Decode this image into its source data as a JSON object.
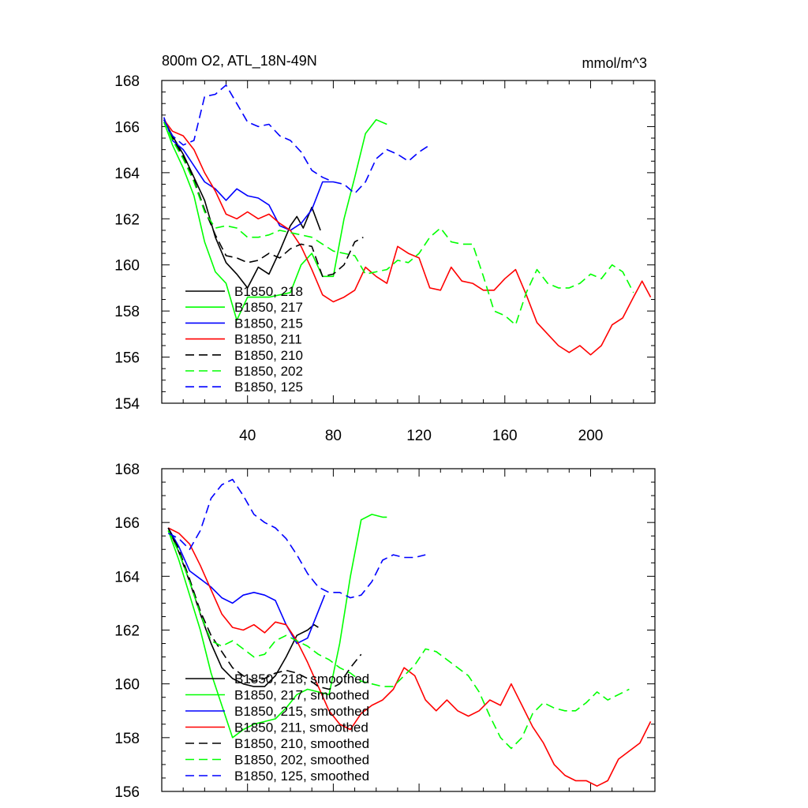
{
  "title": "800m O2, ATL_18N-49N",
  "units": "mmol/m^3",
  "chart_data": [
    {
      "type": "line",
      "title": "800m O2, ATL_18N-49N",
      "units": "mmol/m^3",
      "xlim": [
        0,
        230
      ],
      "ylim": [
        154,
        168
      ],
      "xticks": [
        40,
        80,
        120,
        160,
        200
      ],
      "xtick_labels": [
        "40",
        "80",
        "120",
        "160",
        "200"
      ],
      "yticks": [
        154,
        156,
        158,
        160,
        162,
        164,
        166,
        168
      ],
      "ytick_labels": [
        "154",
        "156",
        "158",
        "160",
        "162",
        "164",
        "166",
        "168"
      ],
      "legend_position": "bottom-left",
      "series": [
        {
          "name": "B1850, 218",
          "label": "B1850, 218",
          "color": "#000000",
          "dash": "solid",
          "x": [
            1,
            5,
            10,
            15,
            20,
            25,
            30,
            35,
            40,
            45,
            50,
            55,
            60,
            63,
            66,
            70,
            74
          ],
          "y": [
            166.3,
            165.6,
            164.8,
            163.8,
            162.8,
            161.2,
            160.1,
            159.6,
            159.0,
            159.9,
            159.6,
            160.6,
            161.7,
            162.1,
            161.6,
            162.5,
            161.5
          ]
        },
        {
          "name": "B1850, 217",
          "label": "B1850, 217",
          "color": "#00ff00",
          "dash": "solid",
          "x": [
            1,
            5,
            10,
            15,
            20,
            25,
            30,
            35,
            40,
            45,
            50,
            55,
            60,
            65,
            70,
            75,
            80,
            85,
            90,
            95,
            100,
            105
          ],
          "y": [
            166.2,
            165.2,
            164.2,
            163.0,
            161.0,
            159.7,
            159.2,
            157.6,
            158.6,
            158.6,
            158.6,
            158.7,
            158.8,
            160.0,
            160.5,
            159.5,
            159.5,
            162.0,
            163.8,
            165.7,
            166.3,
            166.1
          ]
        },
        {
          "name": "B1850, 215",
          "label": "B1850, 215",
          "color": "#0000ff",
          "dash": "solid",
          "x": [
            1,
            5,
            10,
            15,
            20,
            25,
            30,
            35,
            40,
            45,
            50,
            55,
            60,
            65,
            70,
            75,
            80
          ],
          "y": [
            166.4,
            165.4,
            165.0,
            164.3,
            163.6,
            163.3,
            162.8,
            163.3,
            163.0,
            162.9,
            162.6,
            161.7,
            161.5,
            161.8,
            162.4,
            163.6,
            163.6
          ]
        },
        {
          "name": "B1850, 211",
          "label": "B1850, 211",
          "color": "#ff0000",
          "dash": "solid",
          "x": [
            1,
            5,
            10,
            15,
            20,
            25,
            30,
            35,
            40,
            45,
            50,
            55,
            60,
            65,
            70,
            75,
            80,
            85,
            90,
            95,
            100,
            105,
            110,
            115,
            120,
            125,
            130,
            135,
            140,
            145,
            150,
            155,
            160,
            165,
            170,
            175,
            180,
            185,
            190,
            195,
            200,
            205,
            210,
            215,
            220,
            224,
            228
          ],
          "y": [
            166.3,
            165.8,
            165.6,
            165.0,
            164.0,
            163.2,
            162.2,
            162.0,
            162.3,
            162.0,
            162.2,
            161.8,
            161.5,
            160.8,
            159.8,
            158.7,
            158.4,
            158.6,
            158.9,
            159.9,
            159.5,
            159.2,
            160.8,
            160.5,
            160.3,
            159.0,
            158.9,
            159.9,
            159.3,
            159.2,
            158.9,
            158.9,
            159.4,
            159.8,
            158.7,
            157.5,
            157.0,
            156.5,
            156.2,
            156.5,
            156.1,
            156.5,
            157.4,
            157.7,
            158.6,
            159.3,
            158.6
          ]
        },
        {
          "name": "B1850, 210",
          "label": "B1850, 210",
          "color": "#000000",
          "dash": "dashed",
          "x": [
            1,
            5,
            10,
            15,
            20,
            25,
            30,
            35,
            40,
            45,
            50,
            55,
            60,
            65,
            70,
            75,
            80,
            85,
            90,
            94
          ],
          "y": [
            166.3,
            165.5,
            164.7,
            163.7,
            162.4,
            161.3,
            160.4,
            160.3,
            160.1,
            160.2,
            160.5,
            160.3,
            160.7,
            160.9,
            160.8,
            159.5,
            159.6,
            160.0,
            161.0,
            161.2
          ]
        },
        {
          "name": "B1850, 202",
          "label": "B1850, 202",
          "color": "#00ff00",
          "dash": "dashed",
          "x": [
            1,
            5,
            10,
            15,
            20,
            25,
            30,
            35,
            40,
            45,
            50,
            55,
            60,
            65,
            70,
            75,
            80,
            85,
            90,
            95,
            100,
            105,
            110,
            115,
            120,
            125,
            130,
            135,
            140,
            145,
            150,
            155,
            160,
            165,
            170,
            175,
            180,
            185,
            190,
            195,
            200,
            205,
            210,
            215,
            220
          ],
          "y": [
            166.3,
            165.4,
            164.6,
            163.6,
            162.3,
            161.6,
            161.7,
            161.6,
            161.2,
            161.2,
            161.3,
            161.5,
            161.4,
            161.3,
            161.2,
            160.9,
            160.6,
            160.5,
            160.4,
            159.6,
            159.7,
            159.8,
            160.2,
            160.1,
            160.5,
            161.2,
            161.6,
            161.0,
            160.9,
            160.9,
            159.5,
            158.0,
            157.8,
            157.4,
            158.8,
            159.8,
            159.2,
            159.0,
            159.0,
            159.2,
            159.6,
            159.4,
            160.0,
            159.7,
            158.8
          ]
        },
        {
          "name": "B1850, 125",
          "label": "B1850, 125",
          "color": "#0000ff",
          "dash": "dashed",
          "x": [
            1,
            5,
            10,
            15,
            20,
            25,
            30,
            35,
            40,
            45,
            50,
            55,
            60,
            65,
            70,
            75,
            80,
            85,
            90,
            95,
            100,
            105,
            110,
            115,
            120,
            125
          ],
          "y": [
            166.3,
            165.6,
            165.2,
            165.4,
            167.3,
            167.4,
            167.8,
            167.0,
            166.2,
            166.0,
            166.1,
            165.6,
            165.4,
            164.9,
            164.1,
            163.8,
            163.6,
            163.5,
            163.1,
            163.6,
            164.6,
            165.0,
            164.8,
            164.5,
            164.9,
            165.2
          ]
        }
      ]
    },
    {
      "type": "line",
      "title": "",
      "xlim": [
        0,
        230
      ],
      "ylim": [
        156,
        168
      ],
      "xticks": [
        40,
        80,
        120,
        160,
        200
      ],
      "yticks": [
        156,
        158,
        160,
        162,
        164,
        166,
        168
      ],
      "ytick_labels": [
        "156",
        "158",
        "160",
        "162",
        "164",
        "166",
        "168"
      ],
      "legend_position": "bottom-left",
      "series": [
        {
          "name": "B1850, 218, smoothed",
          "label": "B1850, 218, smoothed",
          "color": "#000000",
          "dash": "solid",
          "x": [
            3,
            8,
            13,
            18,
            23,
            28,
            33,
            38,
            43,
            48,
            53,
            58,
            63,
            68,
            71,
            73
          ],
          "y": [
            165.8,
            164.9,
            163.8,
            162.6,
            161.5,
            160.6,
            160.2,
            160.0,
            159.9,
            159.9,
            160.3,
            161.0,
            161.8,
            162.0,
            162.2,
            162.1
          ]
        },
        {
          "name": "B1850, 217, smoothed",
          "label": "B1850, 217, smoothed",
          "color": "#00ff00",
          "dash": "solid",
          "x": [
            3,
            8,
            13,
            18,
            23,
            28,
            33,
            38,
            43,
            48,
            53,
            58,
            63,
            68,
            73,
            78,
            83,
            88,
            93,
            98,
            103,
            105
          ],
          "y": [
            165.7,
            164.6,
            163.3,
            162.0,
            160.4,
            159.2,
            158.0,
            158.3,
            158.5,
            158.6,
            158.7,
            159.1,
            159.6,
            159.8,
            159.7,
            159.6,
            161.5,
            164.0,
            166.1,
            166.3,
            166.2,
            166.2
          ]
        },
        {
          "name": "B1850, 215, smoothed",
          "label": "B1850, 215, smoothed",
          "color": "#0000ff",
          "dash": "solid",
          "x": [
            3,
            8,
            13,
            18,
            23,
            28,
            33,
            38,
            43,
            48,
            53,
            58,
            63,
            68,
            73,
            76
          ],
          "y": [
            165.8,
            165.1,
            164.2,
            163.9,
            163.6,
            163.2,
            163.0,
            163.3,
            163.4,
            163.3,
            163.1,
            162.2,
            161.5,
            161.7,
            162.7,
            163.3
          ]
        },
        {
          "name": "B1850, 211, smoothed",
          "label": "B1850, 211, smoothed",
          "color": "#ff0000",
          "dash": "solid",
          "x": [
            3,
            8,
            13,
            18,
            23,
            28,
            33,
            38,
            43,
            48,
            53,
            58,
            63,
            68,
            73,
            78,
            83,
            88,
            93,
            98,
            103,
            108,
            113,
            118,
            123,
            128,
            133,
            138,
            143,
            148,
            153,
            158,
            163,
            168,
            173,
            178,
            183,
            188,
            193,
            198,
            203,
            208,
            213,
            218,
            223,
            228
          ],
          "y": [
            165.8,
            165.6,
            165.2,
            164.4,
            163.5,
            162.6,
            162.1,
            162.0,
            162.2,
            161.9,
            162.3,
            162.2,
            161.6,
            160.8,
            159.9,
            159.0,
            158.5,
            158.3,
            158.9,
            159.2,
            159.4,
            159.8,
            160.6,
            160.3,
            159.4,
            159.0,
            159.4,
            159.0,
            158.8,
            159.0,
            159.4,
            159.2,
            160.0,
            159.2,
            158.4,
            157.8,
            157.0,
            156.6,
            156.4,
            156.4,
            156.2,
            156.4,
            157.2,
            157.5,
            157.8,
            158.6
          ]
        },
        {
          "name": "B1850, 210, smoothed",
          "label": "B1850, 210, smoothed",
          "color": "#000000",
          "dash": "dashed",
          "x": [
            3,
            8,
            13,
            18,
            23,
            28,
            33,
            38,
            43,
            48,
            53,
            58,
            63,
            68,
            73,
            78,
            83,
            88,
            93
          ],
          "y": [
            165.8,
            165.0,
            163.9,
            162.7,
            161.8,
            161.2,
            160.6,
            160.3,
            160.1,
            160.2,
            160.4,
            160.5,
            160.4,
            160.2,
            159.9,
            159.8,
            160.0,
            160.6,
            161.1
          ]
        },
        {
          "name": "B1850, 202, smoothed",
          "label": "B1850, 202, smoothed",
          "color": "#00ff00",
          "dash": "dashed",
          "x": [
            3,
            8,
            13,
            18,
            23,
            28,
            33,
            38,
            43,
            48,
            53,
            58,
            63,
            68,
            73,
            78,
            83,
            88,
            93,
            98,
            103,
            108,
            113,
            118,
            123,
            128,
            133,
            138,
            143,
            148,
            153,
            158,
            163,
            168,
            173,
            178,
            183,
            188,
            193,
            198,
            203,
            208,
            213,
            218
          ],
          "y": [
            165.7,
            164.9,
            163.8,
            162.6,
            161.6,
            161.4,
            161.6,
            161.3,
            161.0,
            161.1,
            161.6,
            161.8,
            161.6,
            161.4,
            161.1,
            160.9,
            160.6,
            160.4,
            160.1,
            160.0,
            159.9,
            159.9,
            160.3,
            160.7,
            161.3,
            161.2,
            160.9,
            160.6,
            160.3,
            159.7,
            158.8,
            158.0,
            157.6,
            158.0,
            158.9,
            159.3,
            159.1,
            159.0,
            159.0,
            159.3,
            159.7,
            159.4,
            159.6,
            159.8
          ]
        },
        {
          "name": "B1850, 125, smoothed",
          "label": "B1850, 125, smoothed",
          "color": "#0000ff",
          "dash": "dashed",
          "x": [
            3,
            8,
            13,
            18,
            23,
            28,
            33,
            38,
            43,
            48,
            53,
            58,
            63,
            68,
            73,
            78,
            83,
            88,
            93,
            98,
            103,
            108,
            113,
            118,
            123
          ],
          "y": [
            165.6,
            165.4,
            165.0,
            165.7,
            166.9,
            167.4,
            167.6,
            167.0,
            166.3,
            166.0,
            165.8,
            165.4,
            164.8,
            164.1,
            163.6,
            163.4,
            163.4,
            163.2,
            163.3,
            163.8,
            164.6,
            164.8,
            164.7,
            164.7,
            164.8
          ]
        }
      ]
    }
  ]
}
